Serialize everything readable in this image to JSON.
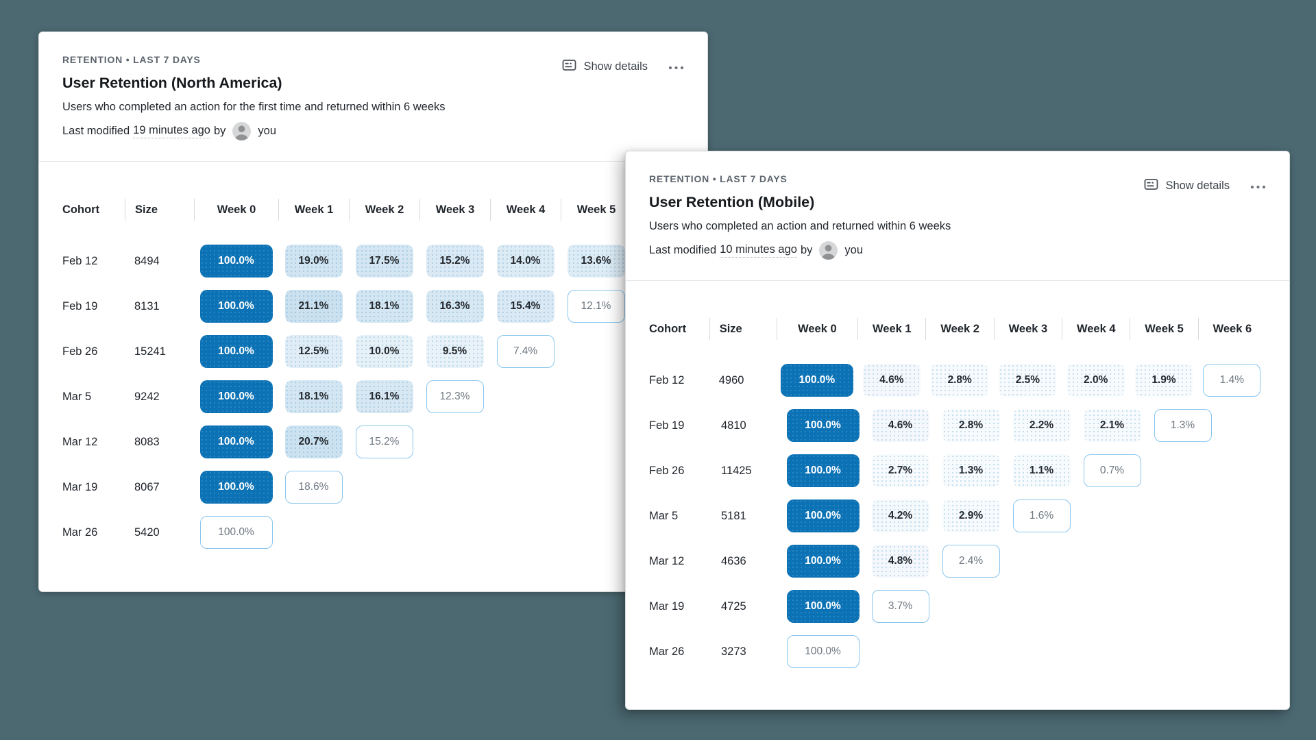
{
  "page": {
    "background": "#4c6972",
    "accent": "#0b72b5"
  },
  "cards": [
    {
      "eyebrow": "RETENTION • LAST 7 DAYS",
      "title": "User Retention (North America)",
      "description": "Users who completed an action for the first time and returned within 6 weeks",
      "modified": {
        "prefix": "Last modified",
        "time": "19 minutes ago",
        "by": "by",
        "user": "you"
      },
      "actions": {
        "show_details": "Show details",
        "menu_icon": "ellipsis-icon",
        "details_icon": "details-panel-icon"
      },
      "columns": [
        "Cohort",
        "Size",
        "Week 0",
        "Week 1",
        "Week 2",
        "Week 3",
        "Week 4",
        "Week 5"
      ],
      "rows": [
        {
          "cohort": "Feb 12",
          "size": "8494",
          "cells": [
            {
              "v": "100.0%",
              "pct": 100,
              "style": "filled"
            },
            {
              "v": "19.0%",
              "pct": 19,
              "style": "filled"
            },
            {
              "v": "17.5%",
              "pct": 17.5,
              "style": "filled"
            },
            {
              "v": "15.2%",
              "pct": 15.2,
              "style": "filled"
            },
            {
              "v": "14.0%",
              "pct": 14,
              "style": "filled"
            },
            {
              "v": "13.6%",
              "pct": 13.6,
              "style": "filled"
            }
          ]
        },
        {
          "cohort": "Feb 19",
          "size": "8131",
          "cells": [
            {
              "v": "100.0%",
              "pct": 100,
              "style": "filled"
            },
            {
              "v": "21.1%",
              "pct": 21.1,
              "style": "filled"
            },
            {
              "v": "18.1%",
              "pct": 18.1,
              "style": "filled"
            },
            {
              "v": "16.3%",
              "pct": 16.3,
              "style": "filled"
            },
            {
              "v": "15.4%",
              "pct": 15.4,
              "style": "filled"
            },
            {
              "v": "12.1%",
              "pct": 12.1,
              "style": "outlined"
            }
          ]
        },
        {
          "cohort": "Feb 26",
          "size": "15241",
          "cells": [
            {
              "v": "100.0%",
              "pct": 100,
              "style": "filled"
            },
            {
              "v": "12.5%",
              "pct": 12.5,
              "style": "filled"
            },
            {
              "v": "10.0%",
              "pct": 10,
              "style": "filled"
            },
            {
              "v": "9.5%",
              "pct": 9.5,
              "style": "filled"
            },
            {
              "v": "7.4%",
              "pct": 7.4,
              "style": "outlined"
            }
          ]
        },
        {
          "cohort": "Mar 5",
          "size": "9242",
          "cells": [
            {
              "v": "100.0%",
              "pct": 100,
              "style": "filled"
            },
            {
              "v": "18.1%",
              "pct": 18.1,
              "style": "filled"
            },
            {
              "v": "16.1%",
              "pct": 16.1,
              "style": "filled"
            },
            {
              "v": "12.3%",
              "pct": 12.3,
              "style": "outlined"
            }
          ]
        },
        {
          "cohort": "Mar 12",
          "size": "8083",
          "cells": [
            {
              "v": "100.0%",
              "pct": 100,
              "style": "filled"
            },
            {
              "v": "20.7%",
              "pct": 20.7,
              "style": "filled"
            },
            {
              "v": "15.2%",
              "pct": 15.2,
              "style": "outlined"
            }
          ]
        },
        {
          "cohort": "Mar 19",
          "size": "8067",
          "cells": [
            {
              "v": "100.0%",
              "pct": 100,
              "style": "filled"
            },
            {
              "v": "18.6%",
              "pct": 18.6,
              "style": "outlined"
            }
          ]
        },
        {
          "cohort": "Mar 26",
          "size": "5420",
          "cells": [
            {
              "v": "100.0%",
              "pct": 100,
              "style": "outlined"
            }
          ]
        }
      ]
    },
    {
      "eyebrow": "RETENTION • LAST 7 DAYS",
      "title": "User Retention (Mobile)",
      "description": "Users who completed an action and returned within 6 weeks",
      "modified": {
        "prefix": "Last modified",
        "time": "10 minutes ago",
        "by": "by",
        "user": "you"
      },
      "actions": {
        "show_details": "Show details",
        "menu_icon": "ellipsis-icon",
        "details_icon": "details-panel-icon"
      },
      "columns": [
        "Cohort",
        "Size",
        "Week 0",
        "Week 1",
        "Week 2",
        "Week 3",
        "Week 4",
        "Week 5",
        "Week 6"
      ],
      "rows": [
        {
          "cohort": "Feb 12",
          "size": "4960",
          "cells": [
            {
              "v": "100.0%",
              "pct": 100,
              "style": "filled"
            },
            {
              "v": "4.6%",
              "pct": 4.6,
              "style": "filled"
            },
            {
              "v": "2.8%",
              "pct": 2.8,
              "style": "filled"
            },
            {
              "v": "2.5%",
              "pct": 2.5,
              "style": "filled"
            },
            {
              "v": "2.0%",
              "pct": 2,
              "style": "filled"
            },
            {
              "v": "1.9%",
              "pct": 1.9,
              "style": "filled"
            },
            {
              "v": "1.4%",
              "pct": 1.4,
              "style": "outlined"
            }
          ]
        },
        {
          "cohort": "Feb 19",
          "size": "4810",
          "cells": [
            {
              "v": "100.0%",
              "pct": 100,
              "style": "filled"
            },
            {
              "v": "4.6%",
              "pct": 4.6,
              "style": "filled"
            },
            {
              "v": "2.8%",
              "pct": 2.8,
              "style": "filled"
            },
            {
              "v": "2.2%",
              "pct": 2.2,
              "style": "filled"
            },
            {
              "v": "2.1%",
              "pct": 2.1,
              "style": "filled"
            },
            {
              "v": "1.3%",
              "pct": 1.3,
              "style": "outlined"
            }
          ]
        },
        {
          "cohort": "Feb 26",
          "size": "11425",
          "cells": [
            {
              "v": "100.0%",
              "pct": 100,
              "style": "filled"
            },
            {
              "v": "2.7%",
              "pct": 2.7,
              "style": "filled"
            },
            {
              "v": "1.3%",
              "pct": 1.3,
              "style": "filled"
            },
            {
              "v": "1.1%",
              "pct": 1.1,
              "style": "filled"
            },
            {
              "v": "0.7%",
              "pct": 0.7,
              "style": "outlined"
            }
          ]
        },
        {
          "cohort": "Mar 5",
          "size": "5181",
          "cells": [
            {
              "v": "100.0%",
              "pct": 100,
              "style": "filled"
            },
            {
              "v": "4.2%",
              "pct": 4.2,
              "style": "filled"
            },
            {
              "v": "2.9%",
              "pct": 2.9,
              "style": "filled"
            },
            {
              "v": "1.6%",
              "pct": 1.6,
              "style": "outlined"
            }
          ]
        },
        {
          "cohort": "Mar 12",
          "size": "4636",
          "cells": [
            {
              "v": "100.0%",
              "pct": 100,
              "style": "filled"
            },
            {
              "v": "4.8%",
              "pct": 4.8,
              "style": "filled"
            },
            {
              "v": "2.4%",
              "pct": 2.4,
              "style": "outlined"
            }
          ]
        },
        {
          "cohort": "Mar 19",
          "size": "4725",
          "cells": [
            {
              "v": "100.0%",
              "pct": 100,
              "style": "filled"
            },
            {
              "v": "3.7%",
              "pct": 3.7,
              "style": "outlined"
            }
          ]
        },
        {
          "cohort": "Mar 26",
          "size": "3273",
          "cells": [
            {
              "v": "100.0%",
              "pct": 100,
              "style": "outlined"
            }
          ]
        }
      ]
    }
  ]
}
